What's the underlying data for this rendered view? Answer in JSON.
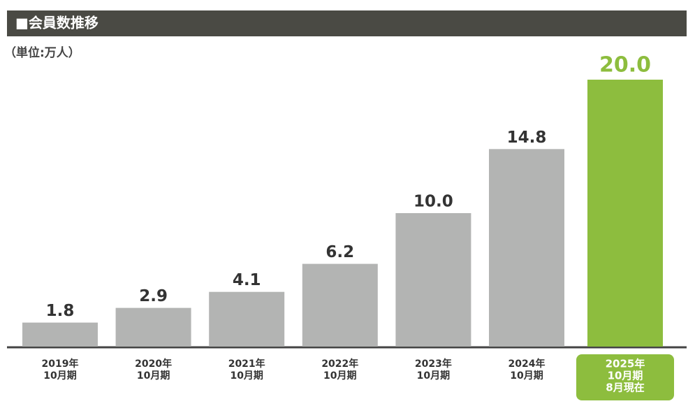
{
  "header": {
    "title": "■会員数推移"
  },
  "chart_data": {
    "type": "bar",
    "unit_label": "（単位:万人）",
    "categories": [
      [
        "2019年",
        "10月期"
      ],
      [
        "2020年",
        "10月期"
      ],
      [
        "2021年",
        "10月期"
      ],
      [
        "2022年",
        "10月期"
      ],
      [
        "2023年",
        "10月期"
      ],
      [
        "2024年",
        "10月期"
      ],
      [
        "2025年",
        "10月期",
        "8月現在"
      ]
    ],
    "values": [
      1.8,
      2.9,
      4.1,
      6.2,
      10,
      14.8,
      20
    ],
    "value_labels": [
      "1.8",
      "2.9",
      "4.1",
      "6.2",
      "10.0",
      "14.8",
      "20.0"
    ],
    "colors": [
      "#b3b4b3",
      "#b3b4b3",
      "#b3b4b3",
      "#b3b4b3",
      "#b3b4b3",
      "#b3b4b3",
      "#8dbd3e"
    ],
    "ylim": [
      0,
      20
    ]
  }
}
